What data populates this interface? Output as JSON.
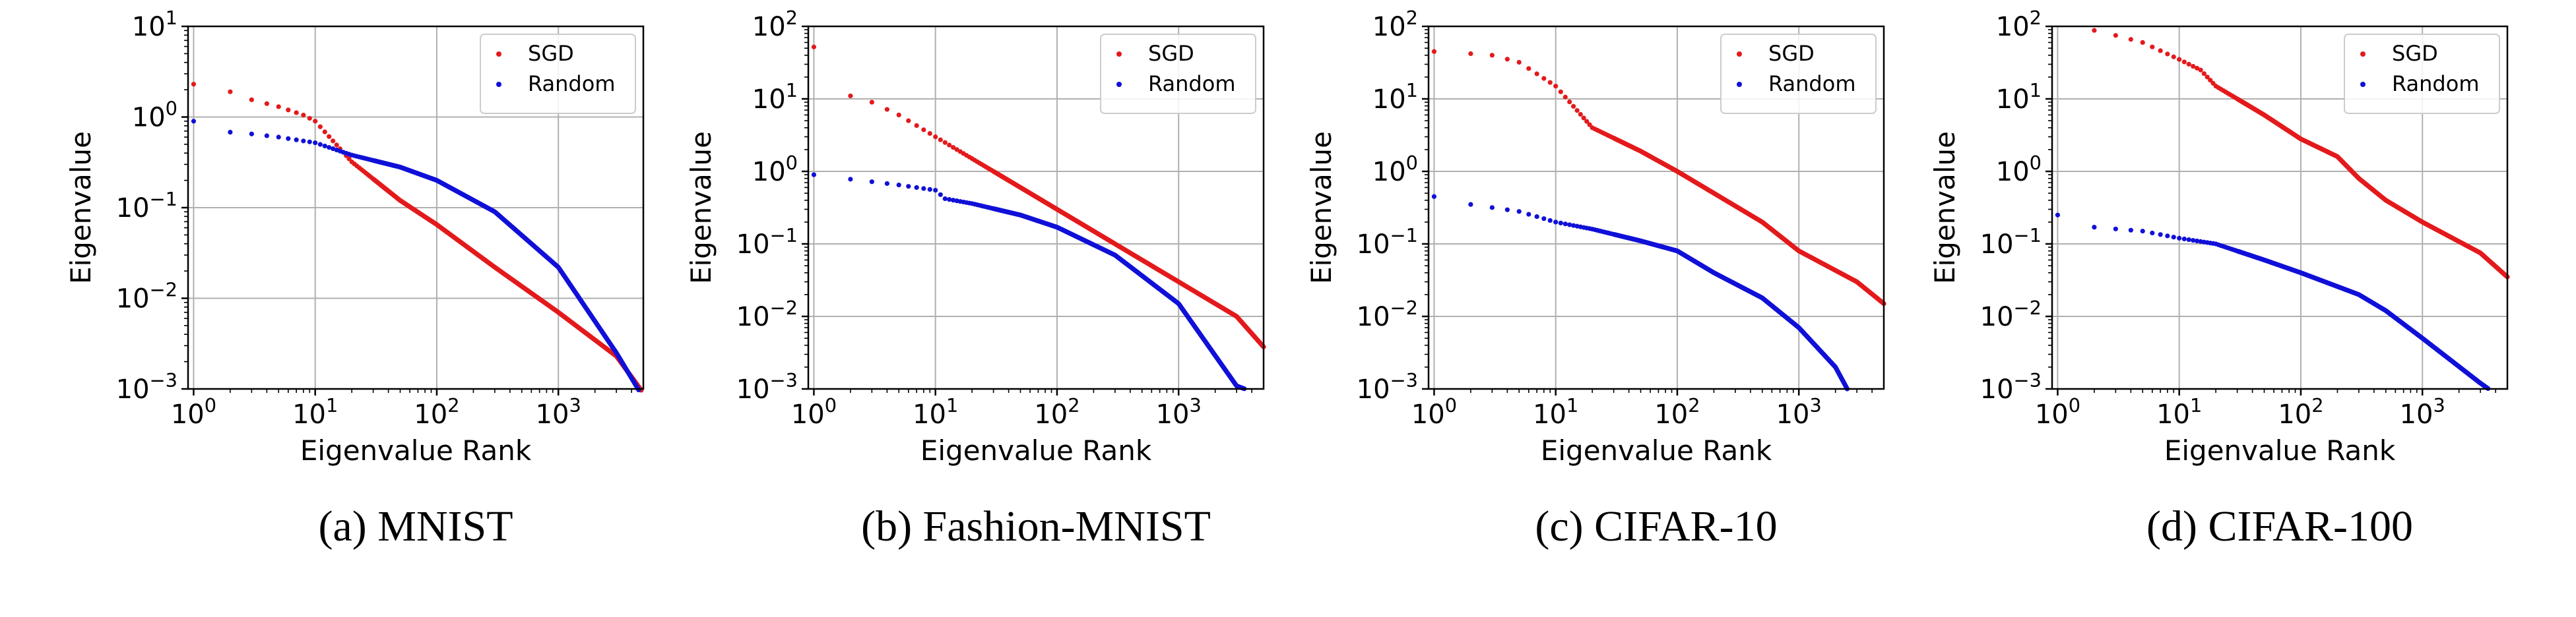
{
  "figure": {
    "captions": [
      "(a) MNIST",
      "(b) Fashion-MNIST",
      "(c) CIFAR-10",
      "(d) CIFAR-100"
    ]
  },
  "colors": {
    "sgd": "#e31a1c",
    "random": "#1010d8",
    "grid": "#b0b0b0",
    "axis": "#000000"
  },
  "chart_data": [
    {
      "type": "scatter",
      "title": "MNIST",
      "xlabel": "Eigenvalue Rank",
      "ylabel": "Eigenvalue",
      "xscale": "log",
      "yscale": "log",
      "xlim": [
        0.9,
        5000
      ],
      "ylim": [
        0.001,
        10
      ],
      "xticks": [
        1,
        10,
        100,
        1000
      ],
      "xtick_labels": [
        "10^0",
        "10^1",
        "10^2",
        "10^3"
      ],
      "yticks": [
        0.001,
        0.01,
        0.1,
        1,
        10
      ],
      "ytick_labels": [
        "10^-3",
        "10^-2",
        "10^-1",
        "10^0",
        "10^1"
      ],
      "grid": true,
      "legend_position": "top-right",
      "series": [
        {
          "name": "SGD",
          "color_key": "sgd",
          "points": [
            [
              1,
              2.3
            ],
            [
              2,
              1.9
            ],
            [
              3,
              1.55
            ],
            [
              5,
              1.3
            ],
            [
              8,
              1.05
            ],
            [
              10,
              0.9
            ],
            [
              20,
              0.32
            ],
            [
              50,
              0.12
            ],
            [
              100,
              0.065
            ],
            [
              300,
              0.022
            ],
            [
              1000,
              0.007
            ],
            [
              3000,
              0.0023
            ],
            [
              5000,
              0.0009
            ]
          ]
        },
        {
          "name": "Random",
          "color_key": "random",
          "points": [
            [
              1,
              0.9
            ],
            [
              2,
              0.68
            ],
            [
              3,
              0.65
            ],
            [
              5,
              0.6
            ],
            [
              10,
              0.52
            ],
            [
              20,
              0.38
            ],
            [
              50,
              0.28
            ],
            [
              100,
              0.2
            ],
            [
              300,
              0.09
            ],
            [
              1000,
              0.022
            ],
            [
              3000,
              0.0025
            ],
            [
              5000,
              0.0008
            ]
          ]
        }
      ]
    },
    {
      "type": "scatter",
      "title": "Fashion-MNIST",
      "xlabel": "Eigenvalue Rank",
      "ylabel": "Eigenvalue",
      "xscale": "log",
      "yscale": "log",
      "xlim": [
        0.9,
        5000
      ],
      "ylim": [
        0.001,
        100
      ],
      "xticks": [
        1,
        10,
        100,
        1000
      ],
      "xtick_labels": [
        "10^0",
        "10^1",
        "10^2",
        "10^3"
      ],
      "yticks": [
        0.001,
        0.01,
        0.1,
        1,
        10,
        100
      ],
      "ytick_labels": [
        "10^-3",
        "10^-2",
        "10^-1",
        "10^0",
        "10^1",
        "10^2"
      ],
      "grid": true,
      "legend_position": "top-right",
      "series": [
        {
          "name": "SGD",
          "color_key": "sgd",
          "points": [
            [
              1,
              52
            ],
            [
              2,
              11
            ],
            [
              3,
              9
            ],
            [
              5,
              6
            ],
            [
              10,
              3
            ],
            [
              20,
              1.5
            ],
            [
              50,
              0.6
            ],
            [
              100,
              0.3
            ],
            [
              300,
              0.1
            ],
            [
              1000,
              0.03
            ],
            [
              3000,
              0.01
            ],
            [
              5000,
              0.0038
            ]
          ]
        },
        {
          "name": "Random",
          "color_key": "random",
          "points": [
            [
              1,
              0.9
            ],
            [
              2,
              0.78
            ],
            [
              5,
              0.65
            ],
            [
              10,
              0.55
            ],
            [
              12,
              0.42
            ],
            [
              20,
              0.36
            ],
            [
              50,
              0.25
            ],
            [
              100,
              0.17
            ],
            [
              300,
              0.07
            ],
            [
              1000,
              0.015
            ],
            [
              3000,
              0.0011
            ],
            [
              3500,
              0.001
            ]
          ]
        }
      ]
    },
    {
      "type": "scatter",
      "title": "CIFAR-10",
      "xlabel": "Eigenvalue Rank",
      "ylabel": "Eigenvalue",
      "xscale": "log",
      "yscale": "log",
      "xlim": [
        0.9,
        5000
      ],
      "ylim": [
        0.001,
        100
      ],
      "xticks": [
        1,
        10,
        100,
        1000
      ],
      "xtick_labels": [
        "10^0",
        "10^1",
        "10^2",
        "10^3"
      ],
      "yticks": [
        0.001,
        0.01,
        0.1,
        1,
        10,
        100
      ],
      "ytick_labels": [
        "10^-3",
        "10^-2",
        "10^-1",
        "10^0",
        "10^1",
        "10^2"
      ],
      "grid": true,
      "legend_position": "top-right",
      "series": [
        {
          "name": "SGD",
          "color_key": "sgd",
          "points": [
            [
              1,
              45
            ],
            [
              2,
              42
            ],
            [
              3,
              40
            ],
            [
              5,
              32
            ],
            [
              10,
              15
            ],
            [
              20,
              4
            ],
            [
              50,
              1.9
            ],
            [
              100,
              1
            ],
            [
              200,
              0.5
            ],
            [
              500,
              0.2
            ],
            [
              1000,
              0.08
            ],
            [
              3000,
              0.03
            ],
            [
              5000,
              0.015
            ]
          ]
        },
        {
          "name": "Random",
          "color_key": "random",
          "points": [
            [
              1,
              0.45
            ],
            [
              2,
              0.35
            ],
            [
              5,
              0.28
            ],
            [
              10,
              0.2
            ],
            [
              20,
              0.16
            ],
            [
              50,
              0.11
            ],
            [
              100,
              0.08
            ],
            [
              200,
              0.04
            ],
            [
              500,
              0.018
            ],
            [
              1000,
              0.007
            ],
            [
              2000,
              0.002
            ],
            [
              2500,
              0.001
            ]
          ]
        }
      ]
    },
    {
      "type": "scatter",
      "title": "CIFAR-100",
      "xlabel": "Eigenvalue Rank",
      "ylabel": "Eigenvalue",
      "xscale": "log",
      "yscale": "log",
      "xlim": [
        0.9,
        5000
      ],
      "ylim": [
        0.001,
        100
      ],
      "xticks": [
        1,
        10,
        100,
        1000
      ],
      "xtick_labels": [
        "10^0",
        "10^1",
        "10^2",
        "10^3"
      ],
      "yticks": [
        0.001,
        0.01,
        0.1,
        1,
        10,
        100
      ],
      "ytick_labels": [
        "10^-3",
        "10^-2",
        "10^-1",
        "10^0",
        "10^1",
        "10^2"
      ],
      "grid": true,
      "legend_position": "top-right",
      "series": [
        {
          "name": "SGD",
          "color_key": "sgd",
          "points": [
            [
              2,
              88
            ],
            [
              3,
              75
            ],
            [
              5,
              60
            ],
            [
              10,
              35
            ],
            [
              15,
              25
            ],
            [
              20,
              15
            ],
            [
              50,
              6
            ],
            [
              100,
              2.8
            ],
            [
              200,
              1.6
            ],
            [
              300,
              0.8
            ],
            [
              500,
              0.4
            ],
            [
              1000,
              0.2
            ],
            [
              3000,
              0.075
            ],
            [
              5000,
              0.035
            ]
          ]
        },
        {
          "name": "Random",
          "color_key": "random",
          "points": [
            [
              1,
              0.25
            ],
            [
              2,
              0.17
            ],
            [
              5,
              0.15
            ],
            [
              10,
              0.12
            ],
            [
              20,
              0.1
            ],
            [
              50,
              0.06
            ],
            [
              100,
              0.04
            ],
            [
              300,
              0.02
            ],
            [
              500,
              0.012
            ],
            [
              1000,
              0.005
            ],
            [
              3000,
              0.0012
            ],
            [
              3500,
              0.001
            ]
          ]
        }
      ]
    }
  ]
}
